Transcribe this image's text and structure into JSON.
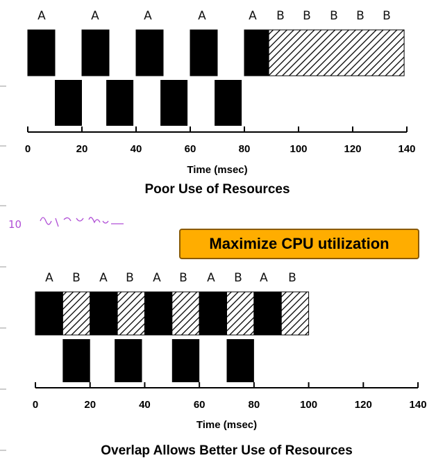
{
  "handwritten_note": "10 ",
  "callout": "Maximize CPU utilization",
  "axis_ticks": [
    "0",
    "20",
    "40",
    "60",
    "80",
    "100",
    "120",
    "140"
  ],
  "chart_data": [
    {
      "type": "timeline",
      "title": "Poor Use of Resources",
      "xlabel": "Time (msec)",
      "xlim": [
        0,
        140
      ],
      "cpu_bursts": [
        {
          "start": 0,
          "end": 10,
          "process": "A"
        },
        {
          "start": 20,
          "end": 30,
          "process": "A"
        },
        {
          "start": 40,
          "end": 50,
          "process": "A"
        },
        {
          "start": 60,
          "end": 70,
          "process": "A"
        },
        {
          "start": 80,
          "end": 89,
          "process": "A"
        },
        {
          "start": 89,
          "end": 139,
          "process": "B"
        }
      ],
      "io_bursts": [
        {
          "start": 10,
          "end": 20
        },
        {
          "start": 29,
          "end": 39
        },
        {
          "start": 49,
          "end": 59
        },
        {
          "start": 69,
          "end": 79
        }
      ],
      "top_labels": [
        "A",
        "A",
        "A",
        "A",
        "A",
        "B",
        "B",
        "B",
        "B",
        "B"
      ]
    },
    {
      "type": "timeline",
      "title": "Overlap Allows Better Use of Resources",
      "xlabel": "Time (msec)",
      "xlim": [
        0,
        140
      ],
      "cpu_bursts": [
        {
          "start": 0,
          "end": 10,
          "process": "A"
        },
        {
          "start": 10,
          "end": 20,
          "process": "B"
        },
        {
          "start": 20,
          "end": 30,
          "process": "A"
        },
        {
          "start": 30,
          "end": 40,
          "process": "B"
        },
        {
          "start": 40,
          "end": 50,
          "process": "A"
        },
        {
          "start": 50,
          "end": 60,
          "process": "B"
        },
        {
          "start": 60,
          "end": 70,
          "process": "A"
        },
        {
          "start": 70,
          "end": 80,
          "process": "B"
        },
        {
          "start": 80,
          "end": 90,
          "process": "A"
        },
        {
          "start": 90,
          "end": 100,
          "process": "B"
        }
      ],
      "io_bursts": [
        {
          "start": 10,
          "end": 20
        },
        {
          "start": 29,
          "end": 39
        },
        {
          "start": 50,
          "end": 60
        },
        {
          "start": 70,
          "end": 80
        }
      ],
      "top_labels": [
        "A",
        "B",
        "A",
        "B",
        "A",
        "B",
        "A",
        "B",
        "A",
        "B"
      ]
    }
  ]
}
